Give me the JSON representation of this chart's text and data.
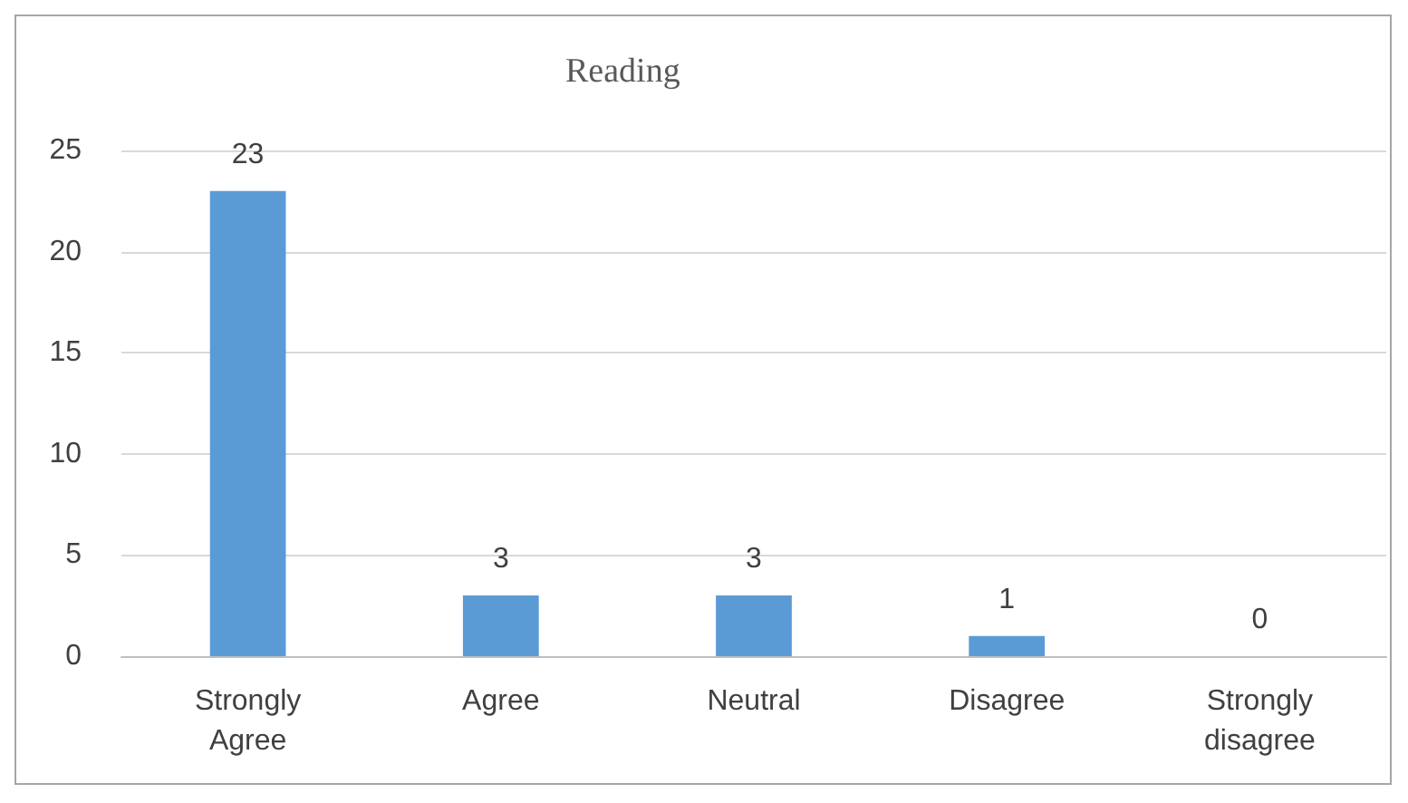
{
  "chart_data": {
    "type": "bar",
    "title": "Reading",
    "categories": [
      "Strongly\nAgree",
      "Agree",
      "Neutral",
      "Disagree",
      "Strongly\ndisagree"
    ],
    "values": [
      23,
      3,
      3,
      1,
      0
    ],
    "color": "#5b9bd5",
    "ylim": [
      0,
      25
    ],
    "yticks": [
      0,
      5,
      10,
      15,
      20,
      25
    ],
    "grid": "y",
    "data_labels": true
  }
}
